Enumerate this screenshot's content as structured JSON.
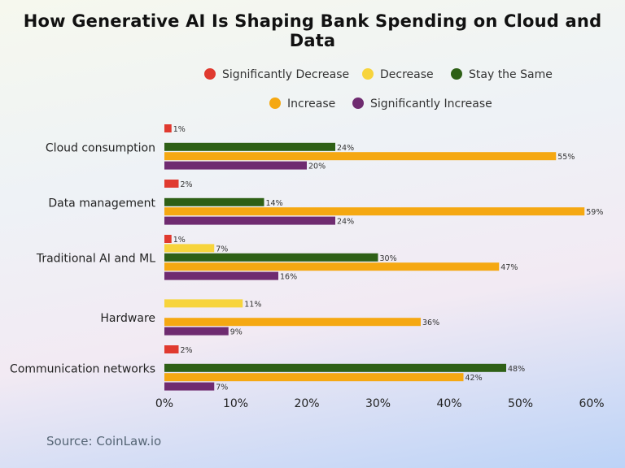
{
  "chart_data": {
    "type": "bar",
    "orientation": "horizontal",
    "title": "How Generative AI Is Shaping Bank Spending on Cloud and Data",
    "categories": [
      "Cloud consumption",
      "Data management",
      "Traditional AI and ML",
      "Hardware",
      "Communication networks"
    ],
    "series": [
      {
        "name": "Significantly Decrease",
        "color": "#e03a2f",
        "values": [
          1,
          2,
          1,
          null,
          2
        ]
      },
      {
        "name": "Decrease",
        "color": "#f7d43c",
        "values": [
          null,
          null,
          7,
          11,
          null
        ]
      },
      {
        "name": "Stay the Same",
        "color": "#2e6016",
        "values": [
          24,
          14,
          30,
          null,
          48
        ]
      },
      {
        "name": "Increase",
        "color": "#f5a812",
        "values": [
          55,
          59,
          47,
          36,
          42
        ]
      },
      {
        "name": "Significantly Increase",
        "color": "#6f2b70",
        "values": [
          20,
          24,
          16,
          9,
          7
        ]
      }
    ],
    "value_suffix": "%",
    "xlim": [
      0,
      60
    ],
    "xticks": [
      "0%",
      "10%",
      "20%",
      "30%",
      "40%",
      "50%",
      "60%"
    ],
    "xlabel": "",
    "ylabel": "",
    "grid": false,
    "legend_position": "top"
  },
  "source": "Source: CoinLaw.io"
}
